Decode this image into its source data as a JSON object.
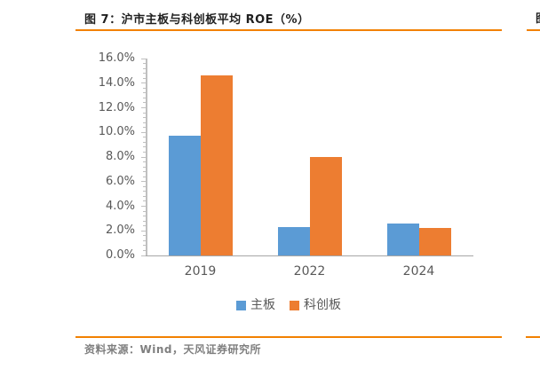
{
  "figure": {
    "title": "图 7：沪市主板与科创板平均 ROE（%）",
    "source": "资料来源：Wind，天风证券研究所",
    "accent_color": "#f28101"
  },
  "next_figure": {
    "title_fragment": "图"
  },
  "chart_data": {
    "type": "bar",
    "title": "沪市主板与科创板平均 ROE（%）",
    "categories": [
      "2019",
      "2022",
      "2024"
    ],
    "series": [
      {
        "name": "主板",
        "color": "#5b9bd5",
        "values": [
          9.7,
          2.3,
          2.6
        ]
      },
      {
        "name": "科创板",
        "color": "#ed7d31",
        "values": [
          14.6,
          8.0,
          2.2
        ]
      }
    ],
    "xlabel": "",
    "ylabel": "",
    "ylim": [
      0,
      16
    ],
    "ytick_step": 2,
    "ytick_labels": [
      "0.0%",
      "2.0%",
      "4.0%",
      "6.0%",
      "8.0%",
      "10.0%",
      "12.0%",
      "14.0%",
      "16.0%"
    ],
    "minor_tick_step": 0.4,
    "grid": false,
    "legend_position": "bottom"
  }
}
